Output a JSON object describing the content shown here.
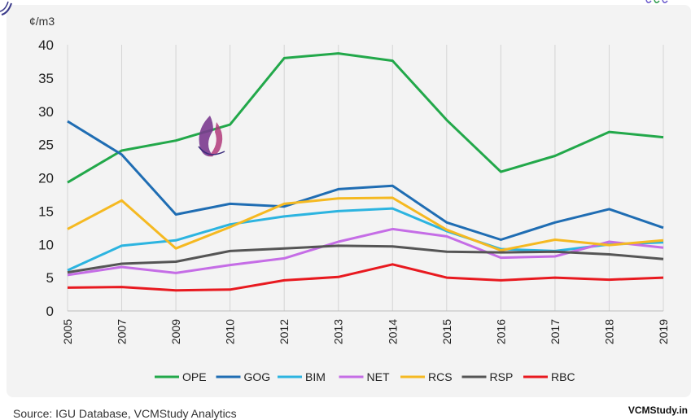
{
  "chart_data": {
    "type": "line",
    "title": "",
    "ylabel": "¢/m3",
    "xlabel": "",
    "ylim": [
      0,
      40
    ],
    "yticks": [
      0,
      5,
      10,
      15,
      20,
      25,
      30,
      35,
      40
    ],
    "grid": "vertical",
    "legend": "bottom",
    "categories": [
      "2005",
      "2007",
      "2009",
      "2010",
      "2012",
      "2013",
      "2014",
      "2015",
      "2016",
      "2017",
      "2018",
      "2019"
    ],
    "series": [
      {
        "name": "OPE",
        "color": "#22a84a",
        "values": [
          19.3,
          24.1,
          25.6,
          28.0,
          38.0,
          38.7,
          37.6,
          28.7,
          20.9,
          23.3,
          26.9,
          26.1
        ]
      },
      {
        "name": "GOG",
        "color": "#1f6db3",
        "values": [
          28.5,
          23.5,
          14.5,
          16.1,
          15.7,
          18.3,
          18.8,
          13.3,
          10.7,
          13.3,
          15.3,
          12.5
        ]
      },
      {
        "name": "BIM",
        "color": "#2cb4e0",
        "values": [
          6.1,
          9.8,
          10.6,
          13.0,
          14.2,
          15.0,
          15.4,
          12.0,
          9.3,
          9.0,
          10.0,
          10.3
        ]
      },
      {
        "name": "NET",
        "color": "#c56de6",
        "values": [
          5.4,
          6.6,
          5.7,
          6.9,
          7.9,
          10.4,
          12.3,
          11.2,
          8.0,
          8.2,
          10.4,
          9.5
        ]
      },
      {
        "name": "RCS",
        "color": "#f5b921",
        "values": [
          12.3,
          16.6,
          9.4,
          12.6,
          16.1,
          16.9,
          17.0,
          12.2,
          9.1,
          10.7,
          9.9,
          10.6
        ]
      },
      {
        "name": "RSP",
        "color": "#555555",
        "values": [
          5.8,
          7.1,
          7.4,
          9.0,
          9.4,
          9.8,
          9.7,
          8.9,
          8.8,
          8.9,
          8.5,
          7.8
        ]
      },
      {
        "name": "RBC",
        "color": "#e8191f",
        "values": [
          3.5,
          3.6,
          3.1,
          3.2,
          4.6,
          5.1,
          7.0,
          5.0,
          4.6,
          5.0,
          4.7,
          5.0
        ]
      }
    ]
  },
  "footer": {
    "source": "Source: IGU Database, VCMStudy Analytics",
    "brand": "VCMStudy.in"
  },
  "icons": {
    "top_left": "swirl-logo-icon",
    "watermark": "flame-logo-icon",
    "top_right": "brand-logo-icon"
  },
  "colors": {
    "panel_background": "#f3f3f3",
    "grid": "#d4d4d4"
  }
}
